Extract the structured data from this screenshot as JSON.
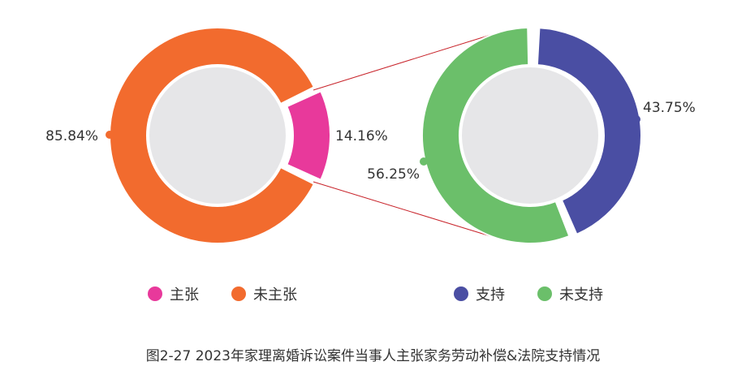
{
  "caption": "图2-27  2023年家理离婚诉讼案件当事人主张家务劳动补偿&法院支持情况",
  "chart_data": [
    {
      "type": "pie",
      "variant": "donut",
      "slices": [
        {
          "name": "主张",
          "value": 14.16,
          "label": "14.16%",
          "color": "#E8399B"
        },
        {
          "name": "未主张",
          "value": 85.84,
          "label": "85.84%",
          "color": "#F26B2E"
        }
      ]
    },
    {
      "type": "pie",
      "variant": "donut",
      "slices": [
        {
          "name": "支持",
          "value": 43.75,
          "label": "43.75%",
          "color": "#4A4EA3"
        },
        {
          "name": "未支持",
          "value": 56.25,
          "label": "56.25%",
          "color": "#6BBF6A"
        }
      ]
    }
  ],
  "legend": [
    {
      "name": "主张",
      "color": "#E8399B"
    },
    {
      "name": "未主张",
      "color": "#F26B2E"
    },
    {
      "name": "支持",
      "color": "#4A4EA3"
    },
    {
      "name": "未支持",
      "color": "#6BBF6A"
    }
  ],
  "colors": {
    "connector": "#C8242B",
    "inner_disc": "#E6E6E8"
  }
}
